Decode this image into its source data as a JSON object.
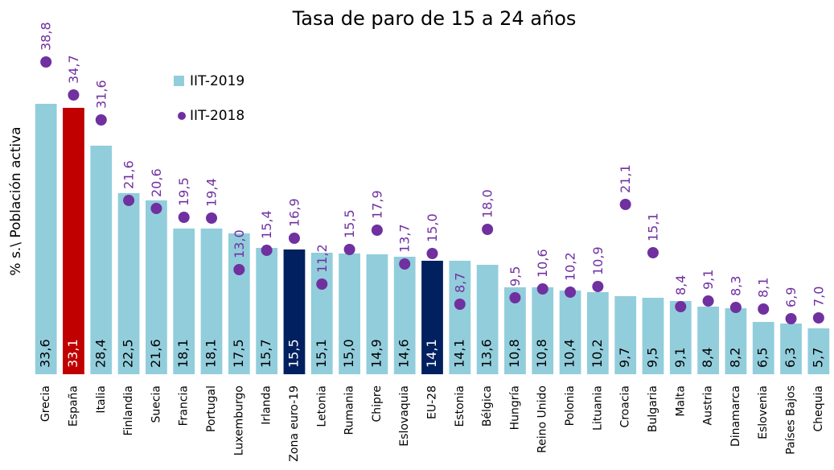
{
  "chart_data": {
    "type": "bar_dot",
    "title": "Tasa de paro de 15 a 24 años",
    "y_label": "% s.\\ Población activa",
    "categories": [
      "Grecia",
      "España",
      "Italia",
      "Finlandia",
      "Suecia",
      "Francia",
      "Portugal",
      "Luxemburgo",
      "Irlanda",
      "Zona euro-19",
      "Letonia",
      "Rumania",
      "Chipre",
      "Eslovaquia",
      "EU-28",
      "Estonia",
      "Bélgica",
      "Hungría",
      "Reino Unido",
      "Polonia",
      "Lituania",
      "Croacia",
      "Bulgaria",
      "Malta",
      "Austria",
      "Dinamarca",
      "Eslovenia",
      "Países Bajos",
      "Chequia"
    ],
    "series": [
      {
        "name": "IIT-2019",
        "color": "#92cddc",
        "colors": [
          "#92cddc",
          "#c00000",
          "#92cddc",
          "#92cddc",
          "#92cddc",
          "#92cddc",
          "#92cddc",
          "#92cddc",
          "#92cddc",
          "#002060",
          "#92cddc",
          "#92cddc",
          "#92cddc",
          "#92cddc",
          "#002060",
          "#92cddc",
          "#92cddc",
          "#92cddc",
          "#92cddc",
          "#92cddc",
          "#92cddc",
          "#92cddc",
          "#92cddc",
          "#92cddc",
          "#92cddc",
          "#92cddc",
          "#92cddc",
          "#92cddc",
          "#92cddc"
        ],
        "values": [
          33.6,
          33.1,
          28.4,
          22.5,
          21.6,
          18.1,
          18.1,
          17.5,
          15.7,
          15.5,
          15.1,
          15.0,
          14.9,
          14.6,
          14.1,
          14.1,
          13.6,
          10.8,
          10.8,
          10.4,
          10.2,
          9.7,
          9.5,
          9.1,
          8.4,
          8.2,
          6.5,
          6.3,
          5.7
        ],
        "value_labels": [
          "33,6",
          "33,1",
          "28,4",
          "22,5",
          "21,6",
          "18,1",
          "18,1",
          "17,5",
          "15,7",
          "15,5",
          "15,1",
          "15,0",
          "14,9",
          "14,6",
          "14,1",
          "14,1",
          "13,6",
          "10,8",
          "10,8",
          "10,4",
          "10,2",
          "9,7",
          "9,5",
          "9,1",
          "8,4",
          "8,2",
          "6,5",
          "6,3",
          "5,7"
        ]
      },
      {
        "name": "IIT-2018",
        "color": "#7030a0",
        "values": [
          38.8,
          34.7,
          31.6,
          21.6,
          20.6,
          19.5,
          19.4,
          13.0,
          15.4,
          16.9,
          11.2,
          15.5,
          17.9,
          13.7,
          15.0,
          8.7,
          18.0,
          9.5,
          10.6,
          10.2,
          10.9,
          21.1,
          15.1,
          8.4,
          9.1,
          8.3,
          8.1,
          6.9,
          7.0
        ],
        "value_labels": [
          "38,8",
          "34,7",
          "31,6",
          "21,6",
          "20,6",
          "19,5",
          "19,4",
          "13,0",
          "15,4",
          "16,9",
          "11,2",
          "15,5",
          "17,9",
          "13,7",
          "15,0",
          "8,7",
          "18,0",
          "9,5",
          "10,6",
          "10,2",
          "10,9",
          "21,1",
          "15,1",
          "8,4",
          "9,1",
          "8,3",
          "8,1",
          "6,9",
          "7,0"
        ]
      }
    ],
    "ylim": [
      0,
      40
    ]
  }
}
